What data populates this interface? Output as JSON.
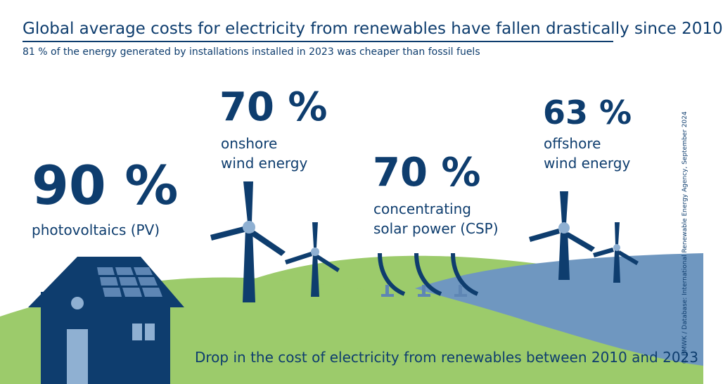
{
  "header": {
    "title": "Global average costs for electricity from renewables have fallen drastically since 2010",
    "subtitle": "81 % of the energy generated by installations installed in 2023 was cheaper than fossil fuels"
  },
  "stats": {
    "pv": {
      "value": "90 %",
      "line1": "photovoltaics (PV)",
      "line2": ""
    },
    "onshore": {
      "value": "70 %",
      "line1": "onshore",
      "line2": "wind energy"
    },
    "csp": {
      "value": "70 %",
      "line1": "concentrating",
      "line2": "solar power (CSP)"
    },
    "offshore": {
      "value": "63 %",
      "line1": "offshore",
      "line2": "wind energy"
    }
  },
  "footer": {
    "caption": "Drop in the cost of electricity from renewables between 2010 and 2023"
  },
  "source": "© BMWK / Database: International Renewable Energy Agency, September 2024",
  "colors": {
    "navy": "#0e3d6e",
    "green": "#9ccb6b",
    "blue_water": "#6f97c0",
    "light_blue": "#8fb0d2"
  }
}
